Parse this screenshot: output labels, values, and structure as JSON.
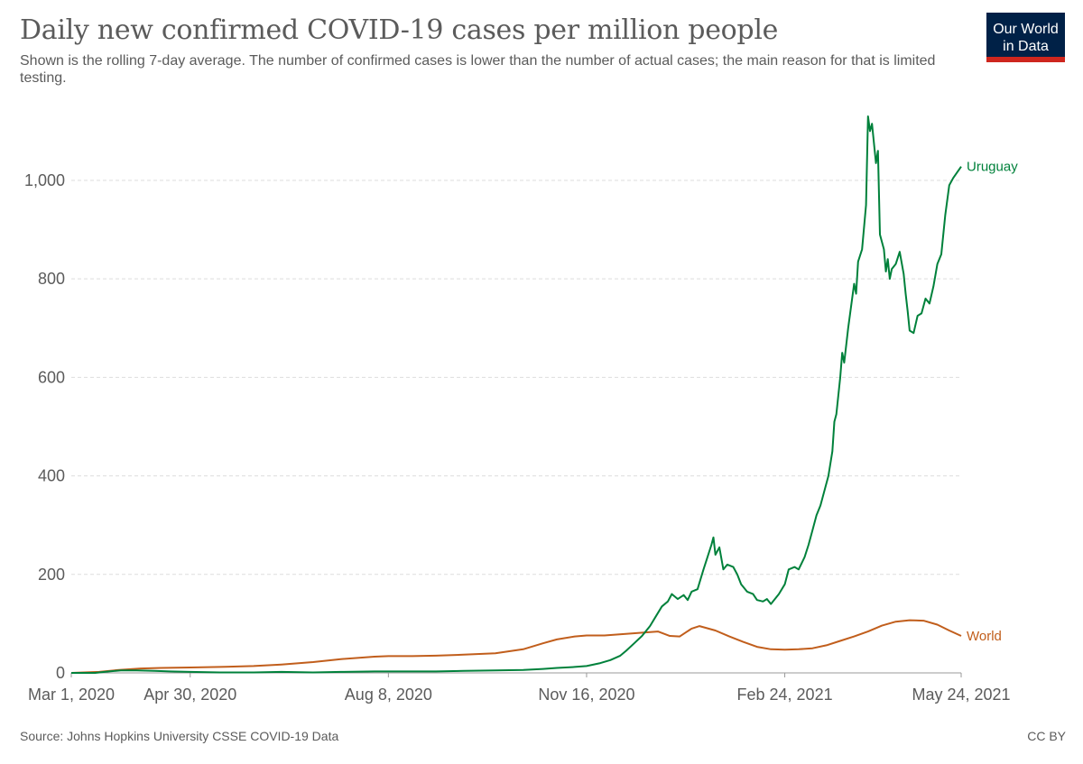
{
  "header": {
    "title": "Daily new confirmed COVID-19 cases per million people",
    "subtitle": "Shown is the rolling 7-day average. The number of confirmed cases is lower than the number of actual cases; the main reason for that is limited testing."
  },
  "logo": {
    "line1": "Our World",
    "line2": "in Data",
    "bg_color": "#002147",
    "bar_color": "#ce261e"
  },
  "footer": {
    "source": "Source: Johns Hopkins University CSSE COVID-19 Data",
    "license": "CC BY"
  },
  "chart_data": {
    "type": "line",
    "title": "Daily new confirmed COVID-19 cases per million people",
    "xlabel": "",
    "ylabel": "",
    "x_start": "2020-03-01",
    "x_end": "2021-05-24",
    "xlim": [
      "2020-03-01",
      "2021-05-24"
    ],
    "ylim": [
      0,
      1130
    ],
    "y_ticks": [
      0,
      200,
      400,
      600,
      800,
      1000
    ],
    "y_tick_labels": [
      "0",
      "200",
      "400",
      "600",
      "800",
      "1,000"
    ],
    "x_ticks": [
      "2020-03-01",
      "2020-04-30",
      "2020-08-08",
      "2020-11-16",
      "2021-02-24",
      "2021-05-24"
    ],
    "x_tick_labels": [
      "Mar 1, 2020",
      "Apr 30, 2020",
      "Aug 8, 2020",
      "Nov 16, 2020",
      "Feb 24, 2021",
      "May 24, 2021"
    ],
    "grid": "horizontal dashed",
    "legend": "inline labels at line ends",
    "series": [
      {
        "name": "Uruguay",
        "color": "#00813b",
        "points": [
          [
            "2020-03-01",
            0
          ],
          [
            "2020-03-13",
            0
          ],
          [
            "2020-03-20",
            3
          ],
          [
            "2020-03-26",
            5
          ],
          [
            "2020-04-03",
            5
          ],
          [
            "2020-04-12",
            4
          ],
          [
            "2020-04-20",
            3
          ],
          [
            "2020-04-30",
            2
          ],
          [
            "2020-05-15",
            1
          ],
          [
            "2020-06-01",
            1
          ],
          [
            "2020-06-15",
            2
          ],
          [
            "2020-07-01",
            1
          ],
          [
            "2020-07-15",
            2
          ],
          [
            "2020-08-01",
            3
          ],
          [
            "2020-08-08",
            3
          ],
          [
            "2020-08-20",
            3
          ],
          [
            "2020-09-01",
            3
          ],
          [
            "2020-09-15",
            4
          ],
          [
            "2020-10-01",
            5
          ],
          [
            "2020-10-15",
            6
          ],
          [
            "2020-10-25",
            8
          ],
          [
            "2020-11-01",
            10
          ],
          [
            "2020-11-10",
            12
          ],
          [
            "2020-11-16",
            14
          ],
          [
            "2020-11-23",
            20
          ],
          [
            "2020-11-28",
            26
          ],
          [
            "2020-12-03",
            35
          ],
          [
            "2020-12-06",
            45
          ],
          [
            "2020-12-10",
            60
          ],
          [
            "2020-12-14",
            75
          ],
          [
            "2020-12-18",
            95
          ],
          [
            "2020-12-21",
            115
          ],
          [
            "2020-12-24",
            135
          ],
          [
            "2020-12-27",
            145
          ],
          [
            "2020-12-29",
            160
          ],
          [
            "2021-01-01",
            150
          ],
          [
            "2021-01-04",
            158
          ],
          [
            "2021-01-06",
            148
          ],
          [
            "2021-01-08",
            165
          ],
          [
            "2021-01-11",
            170
          ],
          [
            "2021-01-14",
            210
          ],
          [
            "2021-01-16",
            235
          ],
          [
            "2021-01-18",
            260
          ],
          [
            "2021-01-19",
            275
          ],
          [
            "2021-01-20",
            240
          ],
          [
            "2021-01-22",
            255
          ],
          [
            "2021-01-24",
            210
          ],
          [
            "2021-01-26",
            220
          ],
          [
            "2021-01-29",
            215
          ],
          [
            "2021-01-31",
            200
          ],
          [
            "2021-02-02",
            180
          ],
          [
            "2021-02-05",
            165
          ],
          [
            "2021-02-08",
            160
          ],
          [
            "2021-02-10",
            148
          ],
          [
            "2021-02-13",
            145
          ],
          [
            "2021-02-15",
            150
          ],
          [
            "2021-02-17",
            140
          ],
          [
            "2021-02-19",
            150
          ],
          [
            "2021-02-21",
            160
          ],
          [
            "2021-02-24",
            180
          ],
          [
            "2021-02-26",
            210
          ],
          [
            "2021-03-01",
            215
          ],
          [
            "2021-03-03",
            210
          ],
          [
            "2021-03-06",
            235
          ],
          [
            "2021-03-08",
            260
          ],
          [
            "2021-03-10",
            290
          ],
          [
            "2021-03-12",
            320
          ],
          [
            "2021-03-14",
            340
          ],
          [
            "2021-03-16",
            370
          ],
          [
            "2021-03-18",
            400
          ],
          [
            "2021-03-20",
            450
          ],
          [
            "2021-03-21",
            510
          ],
          [
            "2021-03-22",
            525
          ],
          [
            "2021-03-24",
            600
          ],
          [
            "2021-03-25",
            650
          ],
          [
            "2021-03-26",
            630
          ],
          [
            "2021-03-28",
            700
          ],
          [
            "2021-03-30",
            760
          ],
          [
            "2021-03-31",
            790
          ],
          [
            "2021-04-01",
            770
          ],
          [
            "2021-04-02",
            835
          ],
          [
            "2021-04-04",
            860
          ],
          [
            "2021-04-06",
            950
          ],
          [
            "2021-04-07",
            1130
          ],
          [
            "2021-04-08",
            1100
          ],
          [
            "2021-04-09",
            1115
          ],
          [
            "2021-04-11",
            1035
          ],
          [
            "2021-04-12",
            1060
          ],
          [
            "2021-04-13",
            890
          ],
          [
            "2021-04-15",
            860
          ],
          [
            "2021-04-16",
            815
          ],
          [
            "2021-04-17",
            840
          ],
          [
            "2021-04-18",
            800
          ],
          [
            "2021-04-19",
            820
          ],
          [
            "2021-04-21",
            830
          ],
          [
            "2021-04-23",
            855
          ],
          [
            "2021-04-25",
            810
          ],
          [
            "2021-04-26",
            770
          ],
          [
            "2021-04-27",
            735
          ],
          [
            "2021-04-28",
            695
          ],
          [
            "2021-04-30",
            690
          ],
          [
            "2021-05-02",
            725
          ],
          [
            "2021-05-04",
            730
          ],
          [
            "2021-05-06",
            760
          ],
          [
            "2021-05-08",
            750
          ],
          [
            "2021-05-10",
            785
          ],
          [
            "2021-05-12",
            830
          ],
          [
            "2021-05-14",
            850
          ],
          [
            "2021-05-16",
            930
          ],
          [
            "2021-05-18",
            990
          ],
          [
            "2021-05-20",
            1005
          ],
          [
            "2021-05-24",
            1028
          ]
        ]
      },
      {
        "name": "World",
        "color": "#c15e1c",
        "points": [
          [
            "2020-03-01",
            0
          ],
          [
            "2020-03-15",
            2
          ],
          [
            "2020-03-25",
            6
          ],
          [
            "2020-04-05",
            9
          ],
          [
            "2020-04-15",
            10
          ],
          [
            "2020-04-30",
            11
          ],
          [
            "2020-05-15",
            12
          ],
          [
            "2020-06-01",
            14
          ],
          [
            "2020-06-15",
            17
          ],
          [
            "2020-07-01",
            22
          ],
          [
            "2020-07-15",
            28
          ],
          [
            "2020-08-01",
            33
          ],
          [
            "2020-08-08",
            34
          ],
          [
            "2020-08-20",
            34
          ],
          [
            "2020-09-01",
            35
          ],
          [
            "2020-09-15",
            37
          ],
          [
            "2020-10-01",
            40
          ],
          [
            "2020-10-15",
            48
          ],
          [
            "2020-10-25",
            60
          ],
          [
            "2020-11-01",
            68
          ],
          [
            "2020-11-10",
            74
          ],
          [
            "2020-11-16",
            76
          ],
          [
            "2020-11-25",
            76
          ],
          [
            "2020-12-05",
            79
          ],
          [
            "2020-12-15",
            82
          ],
          [
            "2020-12-22",
            84
          ],
          [
            "2020-12-28",
            75
          ],
          [
            "2021-01-02",
            74
          ],
          [
            "2021-01-08",
            90
          ],
          [
            "2021-01-12",
            95
          ],
          [
            "2021-01-20",
            86
          ],
          [
            "2021-01-27",
            74
          ],
          [
            "2021-02-03",
            63
          ],
          [
            "2021-02-10",
            53
          ],
          [
            "2021-02-17",
            48
          ],
          [
            "2021-02-24",
            47
          ],
          [
            "2021-03-03",
            48
          ],
          [
            "2021-03-10",
            50
          ],
          [
            "2021-03-17",
            56
          ],
          [
            "2021-03-24",
            65
          ],
          [
            "2021-03-31",
            74
          ],
          [
            "2021-04-07",
            84
          ],
          [
            "2021-04-14",
            96
          ],
          [
            "2021-04-21",
            104
          ],
          [
            "2021-04-28",
            107
          ],
          [
            "2021-05-05",
            106
          ],
          [
            "2021-05-12",
            98
          ],
          [
            "2021-05-18",
            86
          ],
          [
            "2021-05-24",
            75
          ]
        ]
      }
    ]
  }
}
